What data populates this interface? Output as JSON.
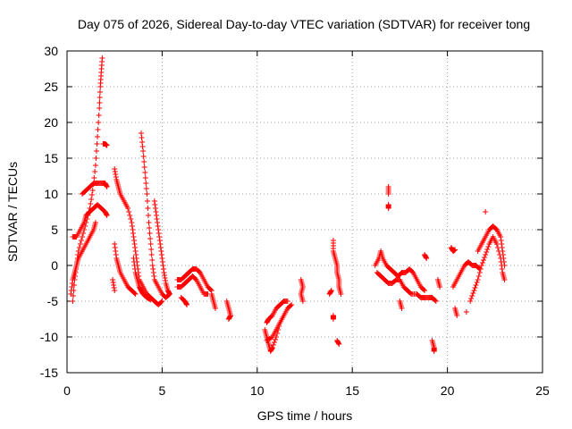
{
  "chart_data": {
    "type": "scatter",
    "title": "Day 075 of 2026, Sidereal Day-to-day VTEC variation (SDTVAR) for receiver tong",
    "xlabel": "GPS time / hours",
    "ylabel": "SDTVAR / TECUs",
    "xlim": [
      0,
      25
    ],
    "ylim": [
      -15,
      30
    ],
    "xticks": [
      0,
      5,
      10,
      15,
      20,
      25
    ],
    "yticks": [
      -15,
      -10,
      -5,
      0,
      5,
      10,
      15,
      20,
      25,
      30
    ],
    "grid": true,
    "marker": "+",
    "color": "#ff0000",
    "series": [
      {
        "name": "SDTVAR",
        "segments": [
          [
            [
              0.3,
              -5
            ],
            [
              0.4,
              -2
            ],
            [
              0.5,
              0
            ],
            [
              0.6,
              2
            ],
            [
              0.8,
              4
            ],
            [
              1.0,
              6
            ],
            [
              1.2,
              8
            ],
            [
              1.35,
              10.5
            ],
            [
              1.5,
              14
            ],
            [
              1.6,
              18
            ],
            [
              1.7,
              22
            ],
            [
              1.75,
              25
            ],
            [
              1.8,
              27
            ],
            [
              1.85,
              29
            ]
          ],
          [
            [
              0.3,
              4
            ],
            [
              0.5,
              4
            ],
            [
              0.7,
              5
            ],
            [
              0.9,
              6
            ],
            [
              1.0,
              7
            ],
            [
              1.2,
              7.5
            ],
            [
              1.4,
              8
            ],
            [
              1.6,
              8.5
            ],
            [
              1.8,
              8
            ],
            [
              2.0,
              7.5
            ],
            [
              2.1,
              7
            ]
          ],
          [
            [
              0.8,
              10
            ],
            [
              1.0,
              10.5
            ],
            [
              1.2,
              11
            ],
            [
              1.4,
              11.5
            ],
            [
              1.6,
              11.5
            ],
            [
              1.8,
              11.5
            ],
            [
              2.0,
              11.5
            ],
            [
              2.1,
              11
            ]
          ],
          [
            [
              0.2,
              -4
            ],
            [
              0.3,
              -2
            ],
            [
              0.4,
              -1
            ],
            [
              0.5,
              0
            ],
            [
              0.6,
              1
            ],
            [
              0.8,
              2
            ],
            [
              1.0,
              3
            ],
            [
              1.2,
              4
            ],
            [
              1.4,
              5
            ],
            [
              1.5,
              6
            ]
          ],
          [
            [
              1.9,
              17
            ],
            [
              2.0,
              17
            ],
            [
              2.1,
              16.8
            ]
          ],
          [
            [
              2.5,
              13.5
            ],
            [
              2.6,
              12
            ],
            [
              2.7,
              11
            ],
            [
              2.8,
              10
            ],
            [
              3.0,
              9
            ],
            [
              3.2,
              8
            ],
            [
              3.4,
              6
            ],
            [
              3.5,
              4
            ],
            [
              3.6,
              2
            ],
            [
              3.7,
              0
            ],
            [
              3.8,
              -2
            ],
            [
              4.0,
              -3
            ],
            [
              4.2,
              -4
            ],
            [
              4.4,
              -4.5
            ],
            [
              4.6,
              -5
            ],
            [
              4.8,
              -5.5
            ],
            [
              5.0,
              -5
            ]
          ],
          [
            [
              2.5,
              3
            ],
            [
              2.6,
              1
            ],
            [
              2.7,
              0
            ],
            [
              2.8,
              -1
            ],
            [
              3.0,
              -2
            ],
            [
              3.2,
              -3
            ],
            [
              3.4,
              -3.5
            ],
            [
              3.6,
              -4
            ]
          ],
          [
            [
              2.4,
              -2
            ],
            [
              2.5,
              -3.5
            ]
          ],
          [
            [
              3.9,
              18.5
            ],
            [
              4.0,
              16
            ],
            [
              4.1,
              13
            ],
            [
              4.2,
              10
            ],
            [
              4.3,
              6
            ],
            [
              4.4,
              3
            ],
            [
              4.5,
              0
            ],
            [
              4.6,
              -2
            ],
            [
              4.8,
              -3
            ],
            [
              5.0,
              -4
            ],
            [
              5.2,
              -4.5
            ],
            [
              5.4,
              -4
            ]
          ],
          [
            [
              4.6,
              9
            ],
            [
              4.7,
              7
            ],
            [
              4.8,
              5
            ],
            [
              4.9,
              3
            ],
            [
              5.0,
              1
            ],
            [
              5.1,
              -1
            ],
            [
              5.2,
              -2.5
            ],
            [
              5.3,
              -3.5
            ],
            [
              5.4,
              -4
            ]
          ],
          [
            [
              3.5,
              1
            ],
            [
              3.6,
              -1
            ],
            [
              3.7,
              -2
            ],
            [
              3.8,
              -3
            ],
            [
              3.9,
              -3.5
            ],
            [
              4.0,
              -4
            ],
            [
              4.2,
              -4.5
            ],
            [
              4.4,
              -4.8
            ]
          ],
          [
            [
              5.8,
              -2
            ],
            [
              6.0,
              -2
            ],
            [
              6.2,
              -1.5
            ],
            [
              6.4,
              -1
            ],
            [
              6.6,
              -0.5
            ],
            [
              6.8,
              -0.5
            ],
            [
              7.0,
              -1
            ],
            [
              7.2,
              -2
            ],
            [
              7.4,
              -3
            ],
            [
              7.6,
              -3.5
            ]
          ],
          [
            [
              5.8,
              -3
            ],
            [
              6.0,
              -3
            ],
            [
              6.2,
              -2.5
            ],
            [
              6.4,
              -2
            ],
            [
              6.6,
              -1.5
            ],
            [
              6.8,
              -2
            ],
            [
              7.0,
              -3
            ],
            [
              7.2,
              -4
            ],
            [
              7.4,
              -4
            ]
          ],
          [
            [
              6.0,
              -4.5
            ],
            [
              6.2,
              -5
            ],
            [
              6.3,
              -5.5
            ]
          ],
          [
            [
              7.6,
              -4
            ],
            [
              7.7,
              -5
            ],
            [
              7.8,
              -6
            ]
          ],
          [
            [
              8.4,
              -5
            ],
            [
              8.5,
              -6
            ],
            [
              8.6,
              -7
            ],
            [
              8.5,
              -7.5
            ]
          ],
          [
            [
              10.4,
              -9
            ],
            [
              10.5,
              -10
            ],
            [
              10.6,
              -11
            ],
            [
              10.7,
              -12
            ],
            [
              10.8,
              -11.5
            ],
            [
              11.0,
              -10
            ],
            [
              11.2,
              -8
            ],
            [
              11.4,
              -7
            ],
            [
              11.6,
              -6
            ],
            [
              11.8,
              -5.5
            ]
          ],
          [
            [
              10.5,
              -8
            ],
            [
              10.6,
              -7.5
            ],
            [
              10.8,
              -7
            ],
            [
              11.0,
              -6
            ],
            [
              11.2,
              -5.5
            ],
            [
              11.4,
              -5
            ],
            [
              11.6,
              -5
            ]
          ],
          [
            [
              10.5,
              -10.5
            ],
            [
              10.8,
              -10
            ],
            [
              11.0,
              -9
            ],
            [
              11.2,
              -8
            ],
            [
              11.4,
              -7
            ]
          ],
          [
            [
              12.3,
              -2
            ],
            [
              12.4,
              -3
            ],
            [
              12.3,
              -4
            ],
            [
              12.4,
              -5
            ]
          ],
          [
            [
              13.8,
              -4
            ],
            [
              13.9,
              -3.5
            ]
          ],
          [
            [
              14.0,
              3.5
            ],
            [
              14.0,
              2
            ],
            [
              14.1,
              1
            ],
            [
              14.2,
              0
            ],
            [
              14.2,
              -1
            ],
            [
              14.3,
              -2
            ],
            [
              14.3,
              -3
            ],
            [
              14.4,
              -4
            ]
          ],
          [
            [
              14.0,
              -7
            ],
            [
              14.0,
              -7.5
            ]
          ],
          [
            [
              14.2,
              -10.5
            ],
            [
              14.3,
              -11
            ]
          ],
          [
            [
              16.2,
              0
            ],
            [
              16.4,
              1
            ],
            [
              16.5,
              2
            ],
            [
              16.6,
              1
            ],
            [
              16.8,
              0
            ],
            [
              17.0,
              -0.5
            ],
            [
              17.2,
              -1
            ],
            [
              17.4,
              -1.5
            ],
            [
              17.6,
              -1
            ],
            [
              17.8,
              -1
            ],
            [
              18.0,
              -0.5
            ],
            [
              18.2,
              -1
            ],
            [
              18.4,
              -2
            ],
            [
              18.6,
              -3
            ],
            [
              18.8,
              -3.5
            ]
          ],
          [
            [
              16.3,
              -1
            ],
            [
              16.5,
              -1.5
            ],
            [
              16.7,
              -2
            ],
            [
              16.9,
              -2.5
            ],
            [
              17.1,
              -2.5
            ],
            [
              17.3,
              -2
            ],
            [
              17.5,
              -2
            ],
            [
              17.7,
              -3
            ],
            [
              17.9,
              -3.5
            ],
            [
              18.1,
              -4
            ],
            [
              18.4,
              -4
            ],
            [
              18.6,
              -4.5
            ],
            [
              18.8,
              -4.5
            ],
            [
              19.0,
              -4.5
            ],
            [
              19.2,
              -4.5
            ],
            [
              19.4,
              -5
            ]
          ],
          [
            [
              16.9,
              11
            ],
            [
              16.9,
              10
            ]
          ],
          [
            [
              16.9,
              8.5
            ],
            [
              16.9,
              8
            ]
          ],
          [
            [
              17.5,
              -5
            ],
            [
              17.6,
              -6
            ]
          ],
          [
            [
              18.8,
              1.5
            ],
            [
              18.9,
              1
            ]
          ],
          [
            [
              19.2,
              -10.5
            ],
            [
              19.3,
              -11.5
            ],
            [
              19.3,
              -12
            ]
          ],
          [
            [
              19.5,
              -2
            ],
            [
              19.6,
              -3
            ]
          ],
          [
            [
              20.2,
              2.5
            ],
            [
              20.3,
              2
            ],
            [
              20.4,
              2.2
            ]
          ],
          [
            [
              20.3,
              -3
            ],
            [
              20.5,
              -2
            ],
            [
              20.7,
              -1
            ],
            [
              20.9,
              0
            ],
            [
              21.1,
              0.5
            ],
            [
              21.3,
              0
            ],
            [
              21.5,
              0
            ],
            [
              21.7,
              -0.5
            ]
          ],
          [
            [
              20.4,
              -6
            ],
            [
              20.5,
              -7
            ]
          ],
          [
            [
              21.0,
              -6.5
            ]
          ],
          [
            [
              21.2,
              -5
            ],
            [
              21.4,
              -3.5
            ],
            [
              21.6,
              -2
            ],
            [
              21.8,
              0
            ],
            [
              22.0,
              1.5
            ],
            [
              22.2,
              3
            ],
            [
              22.4,
              4
            ],
            [
              22.6,
              3
            ],
            [
              22.8,
              1
            ],
            [
              22.9,
              -1
            ],
            [
              23.0,
              -2
            ]
          ],
          [
            [
              21.6,
              2
            ],
            [
              21.8,
              3
            ],
            [
              22.0,
              4
            ],
            [
              22.2,
              5
            ],
            [
              22.4,
              5.5
            ],
            [
              22.6,
              5
            ],
            [
              22.8,
              4
            ],
            [
              22.9,
              2
            ],
            [
              23.0,
              0
            ]
          ],
          [
            [
              22.0,
              7.5
            ]
          ]
        ]
      }
    ]
  }
}
